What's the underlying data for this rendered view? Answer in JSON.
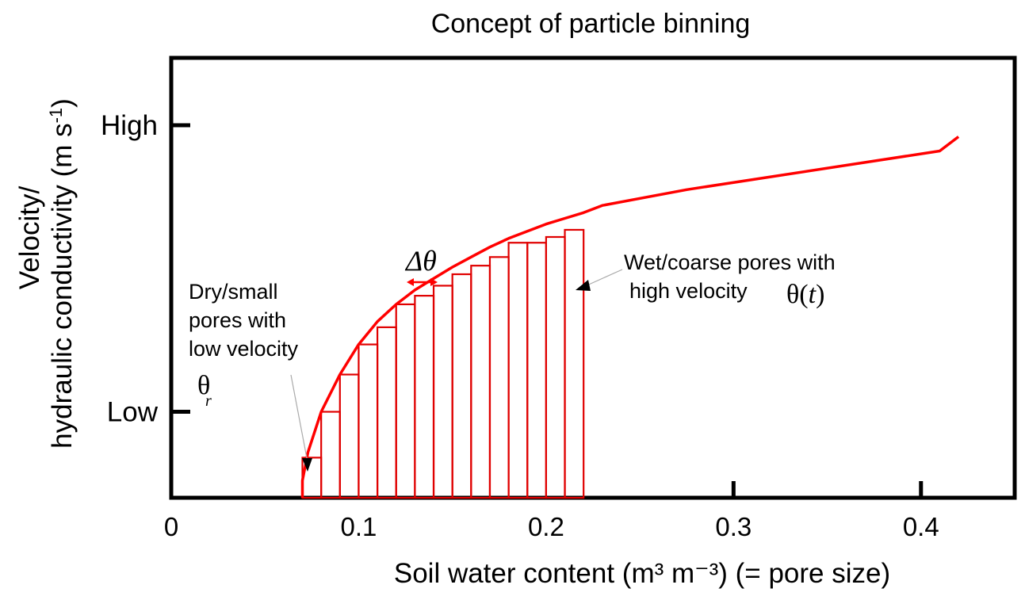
{
  "title": "Concept of particle binning",
  "colors": {
    "curve": "#ff0000",
    "bins": "#e00000",
    "axes": "#000000",
    "pointer": "#aaaaaa"
  },
  "chart_data": {
    "type": "line",
    "title": "Concept of particle binning",
    "xlabel": "Soil water content (m³ m⁻³) (= pore size)",
    "ylabel_line1": "Velocity/",
    "ylabel_line2_main": "hydraulic conductivity (m s",
    "ylabel_sup": "-1",
    "ylabel_close": ")",
    "xlim": [
      0,
      0.45
    ],
    "ylim": [
      0,
      13
    ],
    "x_ticks": [
      {
        "value": 0,
        "label": "0"
      },
      {
        "value": 0.1,
        "label": "0.1"
      },
      {
        "value": 0.2,
        "label": "0.2"
      },
      {
        "value": 0.3,
        "label": "0.3"
      },
      {
        "value": 0.4,
        "label": "0.4"
      }
    ],
    "y_ticks": [
      {
        "value": 3,
        "label": "Low"
      },
      {
        "value": 13,
        "label": "High"
      }
    ],
    "curve": {
      "x": [
        0.07,
        0.073,
        0.08,
        0.09,
        0.1,
        0.11,
        0.12,
        0.13,
        0.14,
        0.15,
        0.16,
        0.17,
        0.18,
        0.19,
        0.2,
        0.21,
        0.22,
        0.23,
        0.275,
        0.41,
        0.42
      ],
      "y": [
        0.6,
        1.6,
        3.0,
        4.3,
        5.35,
        6.15,
        6.75,
        7.25,
        7.65,
        8.05,
        8.4,
        8.75,
        9.05,
        9.3,
        9.55,
        9.75,
        9.95,
        10.2,
        10.75,
        12.1,
        12.6
      ]
    },
    "bins": {
      "x_left": [
        0.07,
        0.08,
        0.09,
        0.1,
        0.11,
        0.12,
        0.13,
        0.14,
        0.15,
        0.16,
        0.17,
        0.18,
        0.19,
        0.2,
        0.21
      ],
      "height": [
        1.4,
        3.0,
        4.3,
        5.35,
        5.95,
        6.75,
        7.05,
        7.4,
        7.8,
        8.1,
        8.4,
        8.9,
        8.9,
        9.1,
        9.35
      ],
      "width": 0.01
    },
    "annotations": {
      "dry_lines": [
        "Dry/small",
        "pores with",
        "low velocity"
      ],
      "theta_r_main": "θ",
      "theta_r_sub": "r",
      "delta_theta": "Δθ",
      "wet_lines": [
        "Wet/coarse pores with",
        "high velocity"
      ],
      "theta_t_main": "θ(",
      "theta_t_var": "t",
      "theta_t_close": ")"
    }
  }
}
